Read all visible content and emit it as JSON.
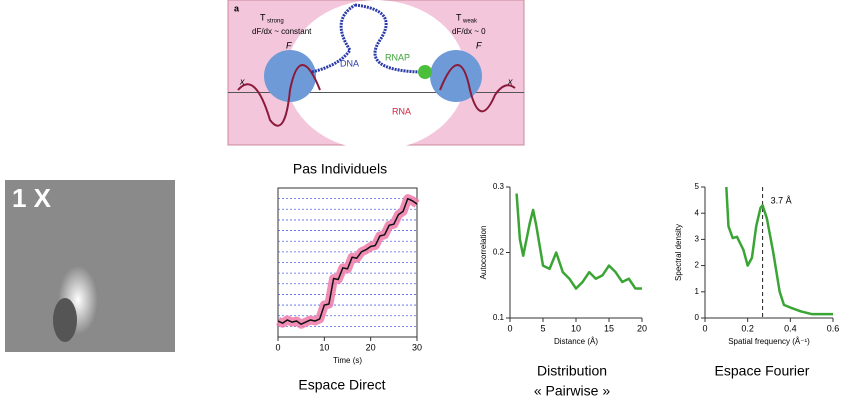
{
  "diagram": {
    "panel": "a",
    "left_force": "T",
    "left_force_sub": "strong",
    "left_gradient": "dF/dx ~ constant",
    "right_force": "T",
    "right_force_sub": "weak",
    "right_gradient": "dF/dx ~ 0",
    "dna": "DNA",
    "rnap": "RNAP",
    "rna": "RNA",
    "force_axis": "F",
    "position_axis": "x"
  },
  "image_label": "1 X",
  "captions": {
    "steps": "Pas Individuels",
    "direct": "Espace Direct",
    "pairwise_1": "Distribution",
    "pairwise_2": "« Pairwise »",
    "fourier": "Espace Fourier"
  },
  "chart_data": [
    {
      "type": "line",
      "xlabel": "Time (s)",
      "xlim": [
        0,
        30
      ],
      "xticks": [
        0,
        10,
        20,
        30
      ],
      "ylim": [
        0,
        14
      ],
      "hlines": [
        1,
        2,
        3,
        4,
        5,
        6,
        7,
        8,
        9,
        10,
        11,
        12,
        13
      ],
      "x": [
        0,
        1,
        2,
        3,
        4,
        5,
        6,
        7,
        8,
        9,
        10,
        11,
        12,
        13,
        14,
        15,
        16,
        17,
        18,
        19,
        20,
        21,
        22,
        23,
        24,
        25,
        26,
        27,
        28,
        29,
        30
      ],
      "series": [
        {
          "color": "#111111",
          "values": [
            1.5,
            1.3,
            1.6,
            1.4,
            1.5,
            1.2,
            1.4,
            1.6,
            1.5,
            1.7,
            3.0,
            3.1,
            5.5,
            5.4,
            6.5,
            6.4,
            7.5,
            7.4,
            8.0,
            8.2,
            8.5,
            8.6,
            9.5,
            9.6,
            10.5,
            10.6,
            11.5,
            11.8,
            13.0,
            12.8,
            12.5
          ]
        }
      ],
      "band_color": "#f07aa8"
    },
    {
      "type": "line",
      "ylabel": "Autocorrelation",
      "xlabel": "Distance (Å)",
      "xlim": [
        0,
        20
      ],
      "xticks": [
        0,
        5,
        10,
        15,
        20
      ],
      "ylim": [
        0.1,
        0.3
      ],
      "yticks": [
        0.1,
        0.2,
        0.3
      ],
      "x": [
        1,
        1.5,
        2,
        3,
        3.5,
        4,
        5,
        6,
        7,
        8,
        9,
        10,
        11,
        12,
        13,
        14,
        15,
        16,
        17,
        18,
        19,
        20
      ],
      "series": [
        {
          "color": "#3aa535",
          "values": [
            0.29,
            0.22,
            0.195,
            0.245,
            0.265,
            0.24,
            0.18,
            0.175,
            0.2,
            0.17,
            0.16,
            0.145,
            0.155,
            0.17,
            0.16,
            0.165,
            0.18,
            0.17,
            0.155,
            0.16,
            0.145,
            0.145
          ]
        }
      ]
    },
    {
      "type": "line",
      "ylabel": "Spectral density",
      "xlabel": "Spatial frequency (Å⁻¹)",
      "xlim": [
        0,
        0.6
      ],
      "xticks": [
        0,
        0.2,
        0.4,
        0.6
      ],
      "ylim": [
        0,
        5
      ],
      "yticks": [
        0,
        1,
        2,
        3,
        4,
        5
      ],
      "x": [
        0.1,
        0.11,
        0.13,
        0.15,
        0.18,
        0.2,
        0.22,
        0.24,
        0.26,
        0.27,
        0.29,
        0.32,
        0.35,
        0.37,
        0.4,
        0.45,
        0.5,
        0.6
      ],
      "series": [
        {
          "color": "#3aa535",
          "values": [
            5,
            3.5,
            3.05,
            3.1,
            2.6,
            2.0,
            2.3,
            3.5,
            4.2,
            4.3,
            3.8,
            2.5,
            1.0,
            0.5,
            0.4,
            0.25,
            0.15,
            0.15
          ]
        }
      ],
      "vline": 0.27,
      "annotation": "3.7 Å"
    }
  ]
}
